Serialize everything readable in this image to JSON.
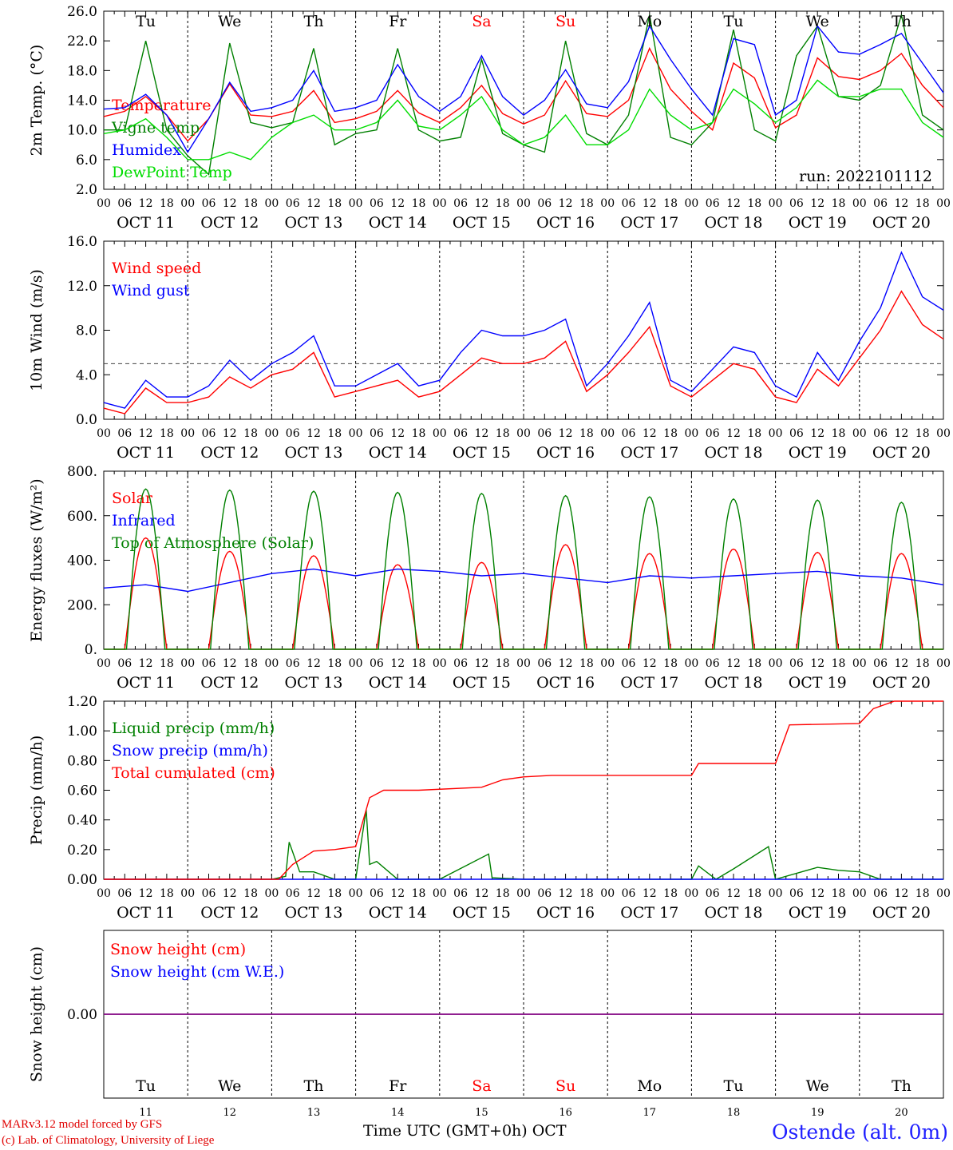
{
  "run_label": "run: 2022101112",
  "days": [
    {
      "dow": "Tu",
      "date": "OCT 11",
      "num": "11",
      "weekend": false
    },
    {
      "dow": "We",
      "date": "OCT 12",
      "num": "12",
      "weekend": false
    },
    {
      "dow": "Th",
      "date": "OCT 13",
      "num": "13",
      "weekend": false
    },
    {
      "dow": "Fr",
      "date": "OCT 14",
      "num": "14",
      "weekend": false
    },
    {
      "dow": "Sa",
      "date": "OCT 15",
      "num": "15",
      "weekend": true
    },
    {
      "dow": "Su",
      "date": "OCT 16",
      "num": "16",
      "weekend": true
    },
    {
      "dow": "Mo",
      "date": "OCT 17",
      "num": "17",
      "weekend": false
    },
    {
      "dow": "Tu",
      "date": "OCT 18",
      "num": "18",
      "weekend": false
    },
    {
      "dow": "We",
      "date": "OCT 19",
      "num": "19",
      "weekend": false
    },
    {
      "dow": "Th",
      "date": "OCT 20",
      "num": "20",
      "weekend": false
    }
  ],
  "hour_ticks": [
    "00",
    "06",
    "12",
    "18"
  ],
  "colors": {
    "red": "#ff0000",
    "green": "#008000",
    "blue": "#0000ff",
    "lightgreen": "#00dd00",
    "purple": "#800080",
    "weekend": "#ff0000"
  },
  "footer": {
    "credit1": "MARv3.12 model forced by GFS",
    "credit2": "(c) Lab. of Climatology, University of Liege",
    "time_label": "Time UTC (GMT+0h) OCT",
    "station": "Ostende (alt. 0m)"
  },
  "chart_data": [
    {
      "type": "line",
      "ylabel": "2m Temp. (°C)",
      "ylim": [
        2.0,
        26.0
      ],
      "yticks": [
        "2.0",
        "6.0",
        "10.0",
        "14.0",
        "18.0",
        "22.0",
        "26.0"
      ],
      "x_unit": "hours since OCT 11 00 UTC",
      "series": [
        {
          "name": "Temperature",
          "color": "red",
          "x": [
            0,
            6,
            12,
            18,
            24,
            30,
            36,
            42,
            48,
            54,
            60,
            66,
            72,
            78,
            84,
            90,
            96,
            102,
            108,
            114,
            120,
            126,
            132,
            138,
            144,
            150,
            156,
            162,
            168,
            174,
            180,
            186,
            192,
            198,
            204,
            210,
            216,
            222,
            228,
            234,
            240
          ],
          "y": [
            11.8,
            12.5,
            14.5,
            12,
            8.5,
            11.5,
            16.2,
            12,
            11.8,
            12.5,
            15.3,
            11,
            11.5,
            12.5,
            15.3,
            12.3,
            11,
            13,
            16,
            12.2,
            10.8,
            12,
            16.6,
            12.2,
            11.8,
            14,
            21,
            15.5,
            12.5,
            10,
            19,
            17,
            10.3,
            12,
            19.7,
            17.2,
            16.8,
            18,
            20.3,
            16,
            13
          ]
        },
        {
          "name": "Vigne temp",
          "color": "green",
          "x": [
            0,
            6,
            12,
            18,
            24,
            30,
            36,
            42,
            48,
            54,
            60,
            66,
            72,
            78,
            84,
            90,
            96,
            102,
            108,
            114,
            120,
            126,
            132,
            138,
            144,
            150,
            156,
            162,
            168,
            174,
            180,
            186,
            192,
            198,
            204,
            210,
            216,
            222,
            228,
            234,
            240
          ],
          "y": [
            10,
            10,
            22,
            10,
            6.5,
            4,
            21.7,
            11,
            10.3,
            11,
            21,
            8,
            9.5,
            10,
            21,
            10,
            8.5,
            9,
            19.5,
            9.5,
            8,
            7,
            22,
            9.5,
            8,
            12,
            25.5,
            9,
            8,
            11,
            23.5,
            10,
            8.5,
            20,
            24,
            14.5,
            14,
            16,
            25.5,
            12,
            10
          ]
        },
        {
          "name": "Humidex",
          "color": "blue",
          "x": [
            0,
            6,
            12,
            18,
            24,
            30,
            36,
            42,
            48,
            54,
            60,
            66,
            72,
            78,
            84,
            90,
            96,
            102,
            108,
            114,
            120,
            126,
            132,
            138,
            144,
            150,
            156,
            162,
            168,
            174,
            180,
            186,
            192,
            198,
            204,
            210,
            216,
            222,
            228,
            234,
            240
          ],
          "y": [
            12.8,
            13,
            14.8,
            12,
            7,
            11.5,
            16.4,
            12.5,
            13,
            14,
            18,
            12.5,
            13,
            14,
            18.8,
            14.5,
            12.5,
            14.5,
            20,
            14.5,
            12,
            14,
            18.1,
            13.5,
            13,
            16.5,
            24,
            19.5,
            15.5,
            12,
            22.3,
            21.5,
            12,
            14,
            24,
            20.5,
            20.2,
            21.5,
            23,
            19,
            15
          ]
        },
        {
          "name": "DewPoint Temp",
          "color": "lightgreen",
          "x": [
            0,
            6,
            12,
            18,
            24,
            30,
            36,
            42,
            48,
            54,
            60,
            66,
            72,
            78,
            84,
            90,
            96,
            102,
            108,
            114,
            120,
            126,
            132,
            138,
            144,
            150,
            156,
            162,
            168,
            174,
            180,
            186,
            192,
            198,
            204,
            210,
            216,
            222,
            228,
            234,
            240
          ],
          "y": [
            9.5,
            10,
            11.5,
            9,
            6,
            6,
            7,
            6,
            9,
            11,
            12,
            10,
            10,
            11,
            14,
            10.5,
            10,
            12,
            14.5,
            10,
            8,
            9,
            12,
            8,
            8,
            10,
            15.5,
            12,
            10,
            11,
            15.5,
            13.5,
            11,
            13,
            16.7,
            14.5,
            14.5,
            15.5,
            15.5,
            11,
            9
          ]
        }
      ]
    },
    {
      "type": "line",
      "ylabel": "10m Wind (m/s)",
      "ylim": [
        0.0,
        16.0
      ],
      "yticks": [
        "0.0",
        "4.0",
        "8.0",
        "12.0",
        "16.0"
      ],
      "reference_line": 5.0,
      "series": [
        {
          "name": "Wind speed",
          "color": "red",
          "x": [
            0,
            6,
            12,
            18,
            24,
            30,
            36,
            42,
            48,
            54,
            60,
            66,
            72,
            78,
            84,
            90,
            96,
            102,
            108,
            114,
            120,
            126,
            132,
            138,
            144,
            150,
            156,
            162,
            168,
            174,
            180,
            186,
            192,
            198,
            204,
            210,
            216,
            222,
            228,
            234,
            240
          ],
          "y": [
            1,
            0.5,
            2.8,
            1.5,
            1.5,
            2,
            3.8,
            2.8,
            4,
            4.5,
            6,
            2,
            2.5,
            3,
            3.5,
            2,
            2.5,
            4,
            5.5,
            5,
            5,
            5.5,
            7,
            2.5,
            4,
            6,
            8.3,
            3,
            2,
            3.5,
            5,
            4.5,
            2,
            1.5,
            4.5,
            3,
            5.5,
            8,
            11.5,
            8.5,
            7.2
          ]
        },
        {
          "name": "Wind gust",
          "color": "blue",
          "x": [
            0,
            6,
            12,
            18,
            24,
            30,
            36,
            42,
            48,
            54,
            60,
            66,
            72,
            78,
            84,
            90,
            96,
            102,
            108,
            114,
            120,
            126,
            132,
            138,
            144,
            150,
            156,
            162,
            168,
            174,
            180,
            186,
            192,
            198,
            204,
            210,
            216,
            222,
            228,
            234,
            240
          ],
          "y": [
            1.5,
            1,
            3.5,
            2,
            2,
            3,
            5.3,
            3.5,
            5,
            6,
            7.5,
            3,
            3,
            4,
            5,
            3,
            3.5,
            6,
            8,
            7.5,
            7.5,
            8,
            9,
            3,
            5,
            7.5,
            10.5,
            3.5,
            2.5,
            4.5,
            6.5,
            6,
            3,
            2,
            6,
            3.5,
            7,
            10,
            15,
            11,
            9.8
          ]
        }
      ]
    },
    {
      "type": "line",
      "ylabel": "Energy fluxes (W/m²)",
      "ylim": [
        0,
        800
      ],
      "yticks": [
        "0.",
        "200.",
        "400.",
        "600.",
        "800."
      ],
      "series": [
        {
          "name": "Solar",
          "color": "red",
          "kind": "diurnal",
          "daily_peak": [
            500,
            440,
            420,
            380,
            390,
            470,
            430,
            450,
            435,
            430
          ],
          "daylight_hours": [
            6,
            18
          ]
        },
        {
          "name": "Infrared",
          "color": "blue",
          "x": [
            0,
            12,
            24,
            36,
            48,
            60,
            72,
            84,
            96,
            108,
            120,
            132,
            144,
            156,
            168,
            180,
            192,
            204,
            216,
            228,
            240
          ],
          "y": [
            275,
            290,
            260,
            300,
            340,
            360,
            330,
            360,
            350,
            330,
            340,
            320,
            300,
            330,
            320,
            330,
            340,
            350,
            330,
            320,
            290
          ]
        },
        {
          "name": "Top of Atmosphere (Solar)",
          "color": "green",
          "kind": "diurnal",
          "daily_peak": [
            720,
            715,
            710,
            705,
            700,
            690,
            685,
            675,
            670,
            660
          ],
          "daylight_hours": [
            6.5,
            17.5
          ]
        }
      ]
    },
    {
      "type": "line",
      "ylabel": "Precip (mm/h)",
      "ylim": [
        0.0,
        1.2
      ],
      "yticks": [
        "0.00",
        "0.20",
        "0.40",
        "0.60",
        "0.80",
        "1.00",
        "1.20"
      ],
      "series": [
        {
          "name": "Liquid precip (mm/h)",
          "color": "green",
          "x": [
            0,
            48,
            52,
            53,
            56,
            60,
            66,
            72,
            75,
            76,
            78,
            84,
            96,
            110,
            111,
            120,
            168,
            170,
            175,
            180,
            190,
            192,
            204,
            210,
            216,
            222,
            240
          ],
          "y": [
            0,
            0,
            0.02,
            0.25,
            0.05,
            0.05,
            0,
            0,
            0.47,
            0.1,
            0.12,
            0,
            0,
            0.17,
            0.01,
            0,
            0,
            0.09,
            0,
            0.07,
            0.22,
            0,
            0.08,
            0.06,
            0.05,
            0,
            0
          ]
        },
        {
          "name": "Snow precip (mm/h)",
          "color": "blue",
          "x": [
            0,
            240
          ],
          "y": [
            0,
            0
          ]
        },
        {
          "name": "Total cumulated (cm)",
          "color": "red",
          "x": [
            0,
            50,
            54,
            60,
            66,
            72,
            76,
            80,
            90,
            108,
            114,
            120,
            128,
            168,
            170,
            192,
            196,
            216,
            220,
            226,
            240
          ],
          "y": [
            0,
            0,
            0.1,
            0.19,
            0.2,
            0.22,
            0.55,
            0.6,
            0.6,
            0.62,
            0.67,
            0.69,
            0.7,
            0.7,
            0.78,
            0.78,
            1.04,
            1.05,
            1.15,
            1.2,
            1.2
          ]
        }
      ]
    },
    {
      "type": "line",
      "ylabel": "Snow height (cm)",
      "yticks": [
        "0.00"
      ],
      "series": [
        {
          "name": "Snow height (cm)",
          "color": "red",
          "x": [
            0,
            240
          ],
          "y": [
            0,
            0
          ]
        },
        {
          "name": "Snow height (cm W.E.)",
          "color": "blue",
          "x": [
            0,
            240
          ],
          "y": [
            0,
            0
          ]
        }
      ]
    }
  ]
}
